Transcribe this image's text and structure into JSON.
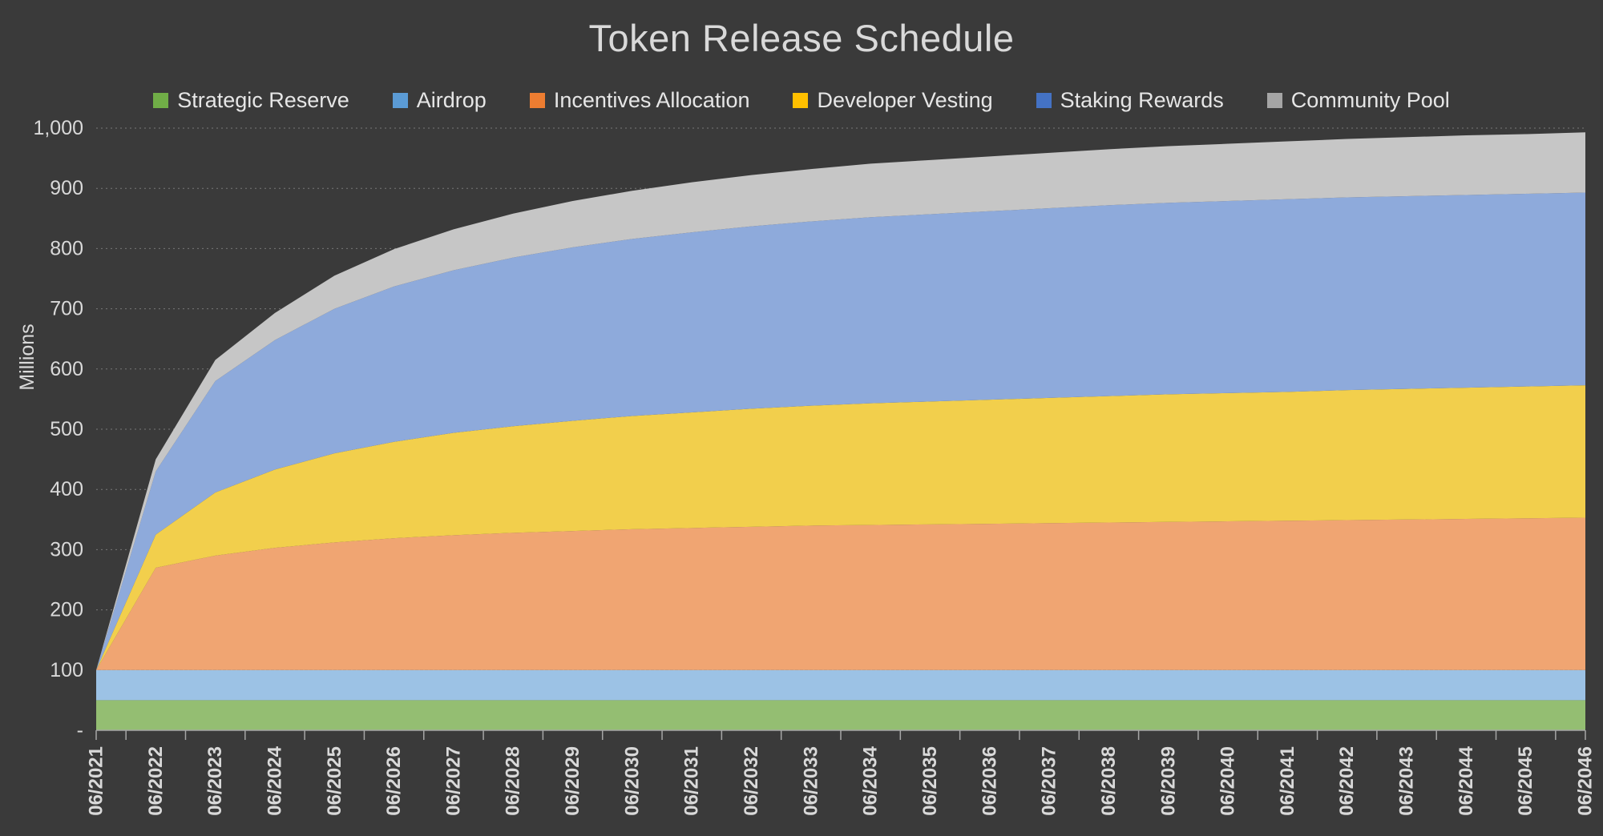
{
  "title": "Token Release Schedule",
  "y_axis": {
    "label": "Millions",
    "ticks": [
      "1,000",
      "900",
      "800",
      "700",
      "600",
      "500",
      "400",
      "300",
      "200",
      "100",
      "-"
    ],
    "step": 100
  },
  "chart_data": {
    "type": "area",
    "stacked": true,
    "title": "Token Release Schedule",
    "ylabel": "Millions",
    "ylim": [
      0,
      1000
    ],
    "grid": "dotted-horizontal",
    "legend_position": "top",
    "background": "#3A3A3A",
    "gridline_color": "#787878",
    "axis_color": "#A6A6A6",
    "text_color": "#D9D9D9",
    "x": [
      "06/2021",
      "06/2022",
      "06/2023",
      "06/2024",
      "06/2025",
      "06/2026",
      "06/2027",
      "06/2028",
      "06/2029",
      "06/2030",
      "06/2031",
      "06/2032",
      "06/2033",
      "06/2034",
      "06/2035",
      "06/2036",
      "06/2037",
      "06/2038",
      "06/2039",
      "06/2040",
      "06/2041",
      "06/2042",
      "06/2043",
      "06/2044",
      "06/2045",
      "06/2046"
    ],
    "series": [
      {
        "name": "Strategic Reserve",
        "legend_color": "#70AD47",
        "area_color": "#94BE72",
        "values": [
          50,
          50,
          50,
          50,
          50,
          50,
          50,
          50,
          50,
          50,
          50,
          50,
          50,
          50,
          50,
          50,
          50,
          50,
          50,
          50,
          50,
          50,
          50,
          50,
          50,
          50
        ]
      },
      {
        "name": "Airdrop",
        "legend_color": "#5B9BD5",
        "area_color": "#9CC2E5",
        "values": [
          50,
          50,
          50,
          50,
          50,
          50,
          50,
          50,
          50,
          50,
          50,
          50,
          50,
          50,
          50,
          50,
          50,
          50,
          50,
          50,
          50,
          50,
          50,
          50,
          50,
          50
        ]
      },
      {
        "name": "Incentives Allocation",
        "legend_color": "#ED7D31",
        "area_color": "#F0A572",
        "values": [
          0,
          170,
          190,
          203,
          212,
          219,
          224,
          228,
          231,
          234,
          236,
          238,
          240,
          241,
          242,
          243,
          244,
          245,
          246,
          247,
          248,
          249,
          250,
          251,
          252,
          253
        ]
      },
      {
        "name": "Developer Vesting",
        "legend_color": "#FFC000",
        "area_color": "#F2CF4C",
        "values": [
          0,
          55,
          105,
          130,
          148,
          160,
          170,
          177,
          183,
          188,
          192,
          196,
          199,
          202,
          204,
          206,
          208,
          210,
          212,
          213,
          214,
          216,
          217,
          218,
          219,
          220
        ]
      },
      {
        "name": "Staking Rewards",
        "legend_color": "#4472C4",
        "area_color": "#8EAADB",
        "values": [
          0,
          105,
          185,
          215,
          240,
          258,
          270,
          280,
          288,
          294,
          299,
          303,
          306,
          309,
          311,
          313,
          315,
          317,
          318,
          319,
          320,
          320,
          320,
          320,
          320,
          320
        ]
      },
      {
        "name": "Community Pool",
        "legend_color": "#A5A5A5",
        "area_color": "#C6C6C6",
        "values": [
          0,
          20,
          35,
          45,
          55,
          62,
          68,
          73,
          77,
          80,
          83,
          85,
          87,
          89,
          90,
          91,
          92,
          93,
          94,
          95,
          96,
          97,
          98,
          99,
          99,
          100
        ]
      }
    ]
  }
}
